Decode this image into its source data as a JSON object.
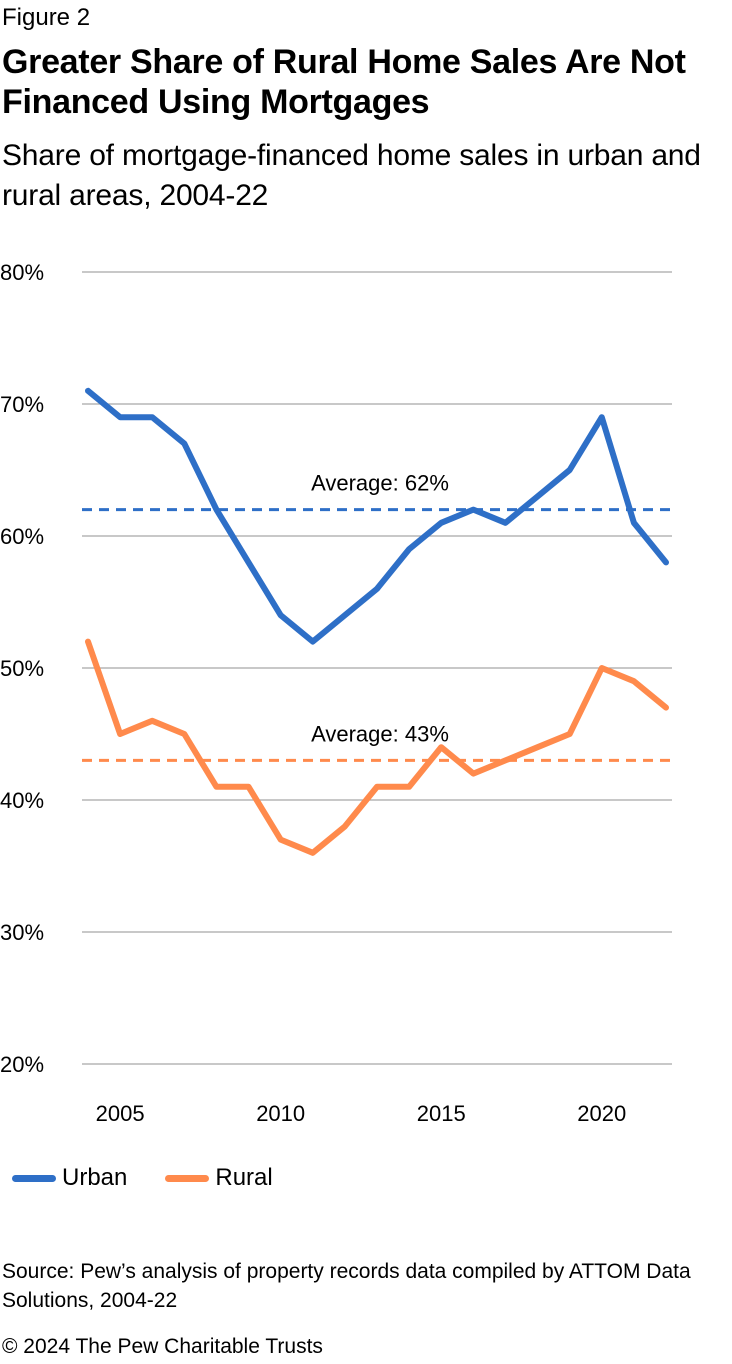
{
  "figure_label": "Figure 2",
  "colors": {
    "urban": "#2E6FC7",
    "rural": "#FF8A4C",
    "grid": "#A6A6A6"
  },
  "chart_data": {
    "type": "line",
    "title": "Greater Share of Rural Home Sales Are Not Financed Using Mortgages",
    "subtitle": "Share of mortgage-financed home sales in urban and rural areas, 2004-22",
    "xlabel": "",
    "ylabel": "",
    "x": [
      2004,
      2005,
      2006,
      2007,
      2008,
      2009,
      2010,
      2011,
      2012,
      2013,
      2014,
      2015,
      2016,
      2017,
      2018,
      2019,
      2020,
      2021,
      2022
    ],
    "xlim": [
      2004,
      2022
    ],
    "ylim": [
      20,
      80
    ],
    "x_ticks": [
      2005,
      2010,
      2015,
      2020
    ],
    "x_tick_labels": [
      "2005",
      "2010",
      "2015",
      "2020"
    ],
    "y_ticks": [
      20,
      30,
      40,
      50,
      60,
      70,
      80
    ],
    "y_tick_labels": [
      "20%",
      "30%",
      "40%",
      "50%",
      "60%",
      "70%",
      "80%"
    ],
    "grid": true,
    "legend_position": "bottom-left",
    "series": [
      {
        "name": "Urban",
        "color": "#2E6FC7",
        "values": [
          71,
          69,
          69,
          67,
          62,
          58,
          54,
          52,
          54,
          56,
          59,
          61,
          62,
          61,
          63,
          65,
          69,
          61,
          58
        ]
      },
      {
        "name": "Rural",
        "color": "#FF8A4C",
        "values": [
          52,
          45,
          46,
          45,
          41,
          41,
          37,
          36,
          38,
          41,
          41,
          44,
          42,
          43,
          44,
          45,
          50,
          49,
          47
        ]
      }
    ],
    "averages": [
      {
        "series": "Urban",
        "value": 62,
        "label": "Average: 62%"
      },
      {
        "series": "Rural",
        "value": 43,
        "label": "Average: 43%"
      }
    ]
  },
  "source": "Source: Pew’s analysis of property records data compiled by ATTOM Data Solutions, 2004-22",
  "copyright": "© 2024 The Pew Charitable Trusts"
}
